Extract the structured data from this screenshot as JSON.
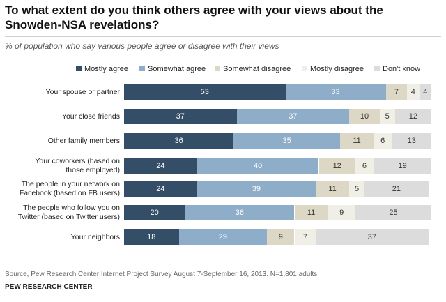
{
  "title": "To what extent do you think others agree with your views about the Snowden-NSA revelations?",
  "subtitle": "% of population who say various people agree or disagree with their views",
  "source": "Source, Pew Research Center Internet Project Survey August 7-September 16, 2013. N=1,801 adults",
  "organization": "PEW RESEARCH CENTER",
  "chart_data": {
    "type": "bar",
    "orientation": "horizontal",
    "stacked": true,
    "legend_position": "top",
    "categories": [
      [
        "Your spouse or partner"
      ],
      [
        "Your close friends"
      ],
      [
        "Other family members"
      ],
      [
        "Your coworkers (based on",
        "those employed)"
      ],
      [
        "The people in your network on",
        "Facebook (based on FB users)"
      ],
      [
        "The people who follow you on",
        "Twitter (based on Twitter users)"
      ],
      [
        "Your neighbors"
      ]
    ],
    "series": [
      {
        "name": "Mostly agree",
        "color": "#334e66",
        "label_color": "#ffffff",
        "values": [
          53,
          37,
          36,
          24,
          24,
          20,
          18
        ]
      },
      {
        "name": "Somewhat agree",
        "color": "#8eadc8",
        "label_color": "#ffffff",
        "values": [
          33,
          37,
          35,
          40,
          39,
          36,
          29
        ]
      },
      {
        "name": "Somewhat disagree",
        "color": "#ddd8c6",
        "label_color": "#333333",
        "values": [
          7,
          10,
          11,
          12,
          11,
          11,
          9
        ]
      },
      {
        "name": "Mostly disagree",
        "color": "#f0efe6",
        "label_color": "#333333",
        "values": [
          4,
          5,
          6,
          6,
          5,
          9,
          7
        ]
      },
      {
        "name": "Don't know",
        "color": "#dcdcdc",
        "label_color": "#333333",
        "values": [
          4,
          12,
          13,
          19,
          21,
          25,
          37
        ]
      }
    ]
  }
}
